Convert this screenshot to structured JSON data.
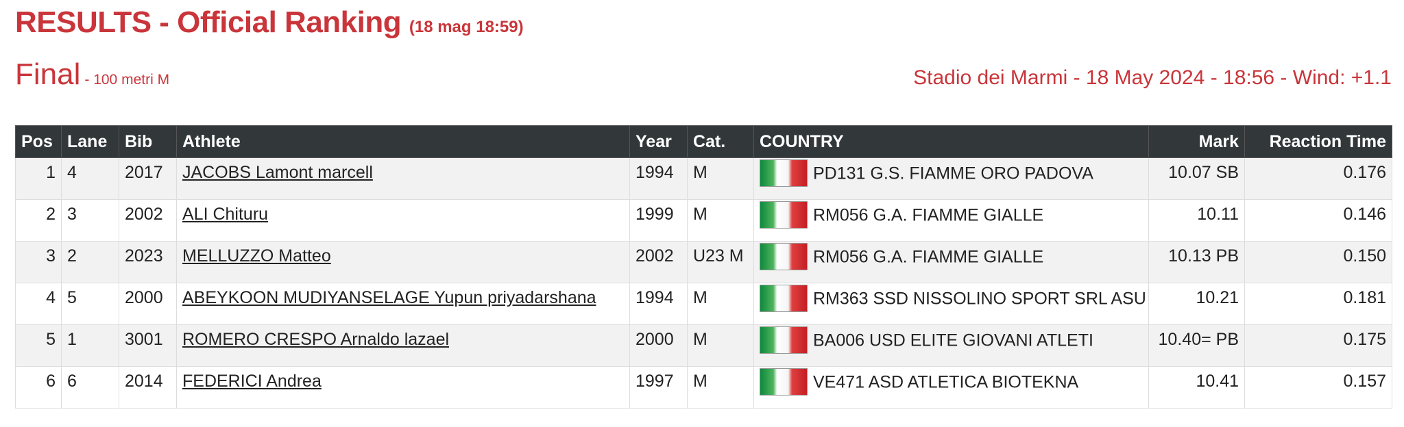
{
  "header": {
    "title": "RESULTS - Official Ranking",
    "timestamp": "(18 mag 18:59)",
    "round": "Final",
    "event": "- 100 metri M",
    "venue_info": "Stadio dei Marmi - 18 May 2024 - 18:56 - Wind: +1.1"
  },
  "table": {
    "columns": {
      "pos": "Pos",
      "lane": "Lane",
      "bib": "Bib",
      "athlete": "Athlete",
      "year": "Year",
      "cat": "Cat.",
      "country": "COUNTRY",
      "mark": "Mark",
      "reaction": "Reaction Time"
    },
    "rows": [
      {
        "pos": "1",
        "lane": "4",
        "bib": "2017",
        "athlete": "JACOBS Lamont marcell",
        "year": "1994",
        "cat": "M",
        "club": "PD131 G.S. FIAMME ORO PADOVA",
        "mark": "10.07 SB",
        "reaction": "0.176",
        "flag": "italy-flag-icon"
      },
      {
        "pos": "2",
        "lane": "3",
        "bib": "2002",
        "athlete": "ALI Chituru",
        "year": "1999",
        "cat": "M",
        "club": "RM056 G.A. FIAMME GIALLE",
        "mark": "10.11",
        "reaction": "0.146",
        "flag": "italy-flag-icon"
      },
      {
        "pos": "3",
        "lane": "2",
        "bib": "2023",
        "athlete": "MELLUZZO Matteo",
        "year": "2002",
        "cat": "U23 M",
        "club": "RM056 G.A. FIAMME GIALLE",
        "mark": "10.13 PB",
        "reaction": "0.150",
        "flag": "italy-flag-icon"
      },
      {
        "pos": "4",
        "lane": "5",
        "bib": "2000",
        "athlete": "ABEYKOON MUDIYANSELAGE Yupun priyadarshana",
        "year": "1994",
        "cat": "M",
        "club": "RM363 SSD NISSOLINO SPORT SRL ASU",
        "mark": "10.21",
        "reaction": "0.181",
        "flag": "italy-flag-icon"
      },
      {
        "pos": "5",
        "lane": "1",
        "bib": "3001",
        "athlete": "ROMERO CRESPO Arnaldo lazael",
        "year": "2000",
        "cat": "M",
        "club": "BA006 USD ELITE GIOVANI ATLETI",
        "mark": "10.40= PB",
        "reaction": "0.175",
        "flag": "italy-flag-icon"
      },
      {
        "pos": "6",
        "lane": "6",
        "bib": "2014",
        "athlete": "FEDERICI Andrea",
        "year": "1997",
        "cat": "M",
        "club": "VE471 ASD ATLETICA BIOTEKNA",
        "mark": "10.41",
        "reaction": "0.157",
        "flag": "italy-flag-icon"
      }
    ]
  },
  "colors": {
    "accent": "#c9353a",
    "table_header_bg": "#32373a",
    "row_alt_bg": "#f2f2f2"
  }
}
